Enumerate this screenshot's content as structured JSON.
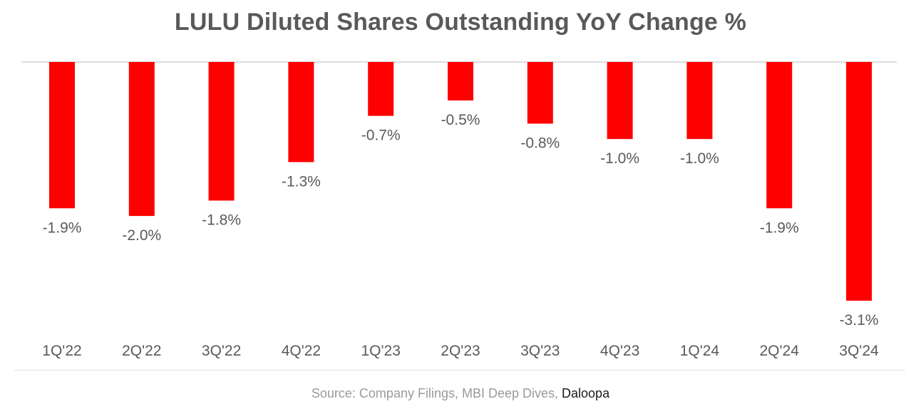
{
  "title": "LULU Diluted Shares Outstanding YoY Change %",
  "source": {
    "text": "Source: Company Filings, MBI Deep Dives, ",
    "brand": "Daloopa"
  },
  "colors": {
    "bar": "#ff0000",
    "text": "#595959",
    "baseline": "#d0d0d0"
  },
  "chart_data": {
    "type": "bar",
    "title": "LULU Diluted Shares Outstanding YoY Change %",
    "categories": [
      "1Q'22",
      "2Q'22",
      "3Q'22",
      "4Q'22",
      "1Q'23",
      "2Q'23",
      "3Q'23",
      "4Q'23",
      "1Q'24",
      "2Q'24",
      "3Q'24"
    ],
    "values": [
      -1.9,
      -2.0,
      -1.8,
      -1.3,
      -0.7,
      -0.5,
      -0.8,
      -1.0,
      -1.0,
      -1.9,
      -3.1
    ],
    "data_labels": [
      "-1.9%",
      "-2.0%",
      "-1.8%",
      "-1.3%",
      "-0.7%",
      "-0.5%",
      "-0.8%",
      "-1.0%",
      "-1.0%",
      "-1.9%",
      "-3.1%"
    ],
    "xlabel": "",
    "ylabel": "",
    "ylim": [
      -3.1,
      0
    ],
    "grid": false,
    "legend": "none"
  }
}
